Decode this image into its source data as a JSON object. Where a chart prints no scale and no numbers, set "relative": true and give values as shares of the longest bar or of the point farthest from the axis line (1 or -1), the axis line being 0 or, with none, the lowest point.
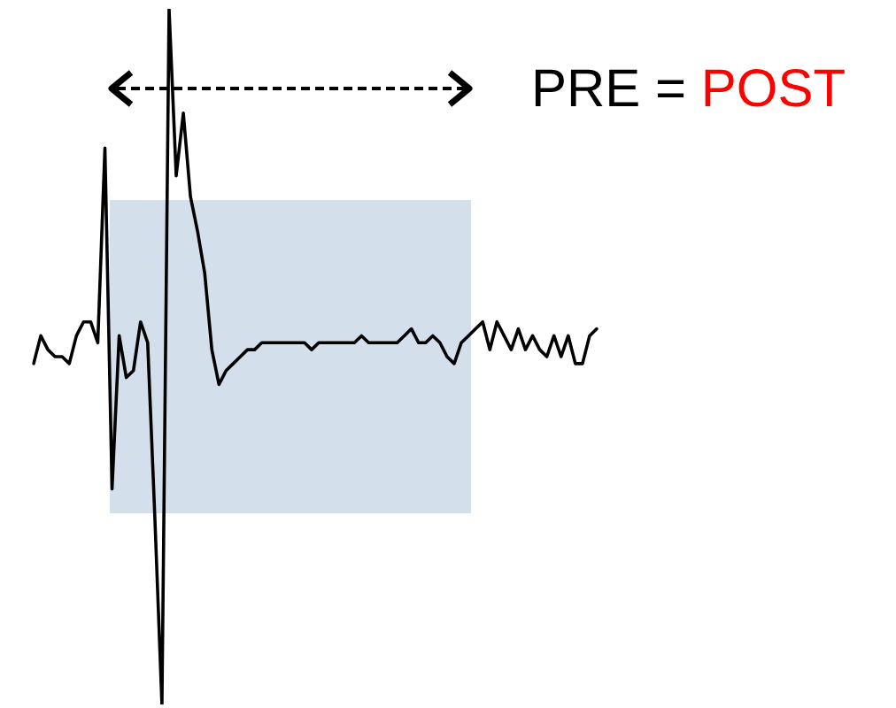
{
  "chart_data": {
    "type": "line",
    "relative": true,
    "legend": false,
    "marker": "none",
    "categories": [
      null,
      null,
      null,
      null,
      null,
      null,
      null,
      null,
      null,
      null,
      null,
      null,
      null,
      null,
      null,
      null,
      null,
      null,
      null,
      null,
      null,
      null,
      null,
      null,
      null,
      null,
      null,
      null,
      null,
      null,
      null,
      null,
      null,
      null,
      null,
      null,
      null,
      null,
      null,
      null,
      null,
      null,
      null,
      null,
      null,
      null,
      null,
      null,
      null,
      null,
      null,
      null,
      null,
      null,
      null,
      null,
      null,
      null,
      null,
      null,
      null,
      null,
      null,
      null,
      null,
      null,
      null,
      null,
      null,
      null,
      null,
      null,
      null,
      null,
      null,
      null,
      null,
      null,
      null,
      null
    ],
    "series": [
      {
        "color": "#000000",
        "values": [
          0.49,
          0.53,
          0.51,
          0.5,
          0.5,
          0.49,
          0.53,
          0.55,
          0.55,
          0.52,
          0.8,
          0.31,
          0.53,
          0.47,
          0.48,
          0.55,
          0.52,
          0.27,
          0,
          1,
          0.76,
          0.85,
          0.73,
          0.68,
          0.62,
          0.51,
          0.46,
          0.48,
          0.49,
          0.5,
          0.51,
          0.51,
          0.52,
          0.52,
          0.52,
          0.52,
          0.52,
          0.52,
          0.52,
          0.51,
          0.52,
          0.52,
          0.52,
          0.52,
          0.52,
          0.52,
          0.53,
          0.52,
          0.52,
          0.52,
          0.52,
          0.52,
          0.53,
          0.54,
          0.52,
          0.52,
          0.53,
          0.52,
          0.5,
          0.49,
          0.52,
          0.53,
          0.54,
          0.55,
          0.51,
          0.55,
          0.53,
          0.51,
          0.54,
          0.51,
          0.53,
          0.51,
          0.5,
          0.53,
          0.5,
          0.53,
          0.49,
          0.49,
          0.53,
          0.54
        ]
      }
    ],
    "annotations": [
      "PRE = POST"
    ]
  }
}
